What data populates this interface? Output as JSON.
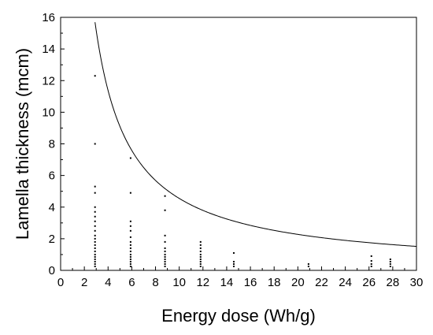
{
  "chart_data": {
    "type": "scatter",
    "title": "",
    "xlabel": "Energy dose (Wh/g)",
    "ylabel": "Lamella thickness (mcm)",
    "xlim": [
      0,
      30
    ],
    "ylim": [
      0,
      16
    ],
    "x_ticks": [
      "0",
      "2",
      "4",
      "6",
      "8",
      "10",
      "12",
      "14",
      "16",
      "18",
      "20",
      "22",
      "24",
      "26",
      "28",
      "30"
    ],
    "y_ticks": [
      "0",
      "2",
      "4",
      "6",
      "8",
      "10",
      "12",
      "14",
      "16"
    ],
    "grid": false,
    "legend": "none",
    "series": [
      {
        "kind": "points",
        "points": [
          [
            2.9,
            12.3
          ],
          [
            2.9,
            8.0
          ],
          [
            2.9,
            5.3
          ],
          [
            2.9,
            4.9
          ],
          [
            2.9,
            4.0
          ],
          [
            2.9,
            3.7
          ],
          [
            2.9,
            3.4
          ],
          [
            2.9,
            3.1
          ],
          [
            2.9,
            2.8
          ],
          [
            2.9,
            2.5
          ],
          [
            2.9,
            2.2
          ],
          [
            2.9,
            2.0
          ],
          [
            2.9,
            1.8
          ],
          [
            2.9,
            1.6
          ],
          [
            2.9,
            1.4
          ],
          [
            2.9,
            1.2
          ],
          [
            2.9,
            1.0
          ],
          [
            2.9,
            0.85
          ],
          [
            2.9,
            0.7
          ],
          [
            2.9,
            0.55
          ],
          [
            2.9,
            0.4
          ],
          [
            2.9,
            0.25
          ],
          [
            5.9,
            7.1
          ],
          [
            5.9,
            4.9
          ],
          [
            5.9,
            3.1
          ],
          [
            5.9,
            2.8
          ],
          [
            5.9,
            2.5
          ],
          [
            5.9,
            2.1
          ],
          [
            5.9,
            1.8
          ],
          [
            5.9,
            1.6
          ],
          [
            5.9,
            1.4
          ],
          [
            5.9,
            1.2
          ],
          [
            5.9,
            1.0
          ],
          [
            5.9,
            0.85
          ],
          [
            5.9,
            0.7
          ],
          [
            5.9,
            0.55
          ],
          [
            5.9,
            0.4
          ],
          [
            5.9,
            0.25
          ],
          [
            8.8,
            4.7
          ],
          [
            8.8,
            3.8
          ],
          [
            8.8,
            2.2
          ],
          [
            8.8,
            1.8
          ],
          [
            8.8,
            1.4
          ],
          [
            8.8,
            1.2
          ],
          [
            8.8,
            1.0
          ],
          [
            8.8,
            0.85
          ],
          [
            8.8,
            0.7
          ],
          [
            8.8,
            0.55
          ],
          [
            8.8,
            0.4
          ],
          [
            8.8,
            0.25
          ],
          [
            11.8,
            1.8
          ],
          [
            11.8,
            1.6
          ],
          [
            11.8,
            1.4
          ],
          [
            11.8,
            1.2
          ],
          [
            11.8,
            1.0
          ],
          [
            11.8,
            0.85
          ],
          [
            11.8,
            0.7
          ],
          [
            11.8,
            0.55
          ],
          [
            11.8,
            0.4
          ],
          [
            11.8,
            0.25
          ],
          [
            14.6,
            1.1
          ],
          [
            14.6,
            0.55
          ],
          [
            14.6,
            0.4
          ],
          [
            14.6,
            0.25
          ],
          [
            20.9,
            0.4
          ],
          [
            20.9,
            0.25
          ],
          [
            26.2,
            0.9
          ],
          [
            26.2,
            0.6
          ],
          [
            26.2,
            0.4
          ],
          [
            26.2,
            0.25
          ],
          [
            27.8,
            0.7
          ],
          [
            27.8,
            0.55
          ],
          [
            27.8,
            0.4
          ],
          [
            27.8,
            0.25
          ]
        ]
      },
      {
        "kind": "curve",
        "form": "y = a / x",
        "a": 45.5,
        "x_range": [
          2.9,
          30
        ]
      }
    ]
  }
}
